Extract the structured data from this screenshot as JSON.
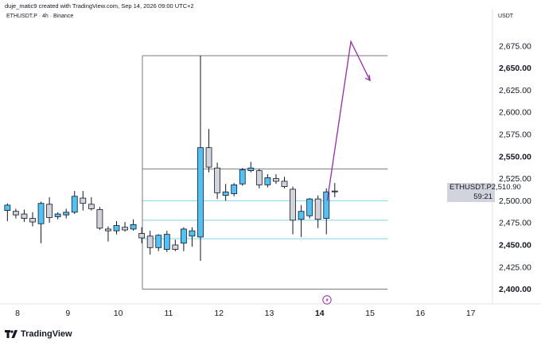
{
  "header": {
    "caption": "duje_matic9 created with TradingView.com, Sep 14, 2026 09:00 UTC+2"
  },
  "symbol_info": "ETHUSDT.P · 4h · Binance",
  "currency": "USDT",
  "price_tag": {
    "symbol": "ETHUSDT.P",
    "price": "2,510.90",
    "countdown": "59:21"
  },
  "footer": {
    "brand": "TradingView"
  },
  "colors": {
    "up": "#4fc3f7",
    "down": "#d1d4dc",
    "wick": "#131722",
    "projection": "#9c27b0",
    "gray_line": "#787b86",
    "cyan_line": "#7fd4e8"
  },
  "chart_data": {
    "type": "candlestick",
    "x_tick_labels": [
      "8",
      "9",
      "10",
      "11",
      "12",
      "13",
      "14",
      "15",
      "16",
      "17"
    ],
    "y_tick_labels": [
      "2,400.00",
      "2,425.00",
      "2,450.00",
      "2,475.00",
      "2,500.00",
      "2,525.00",
      "2,550.00",
      "2,575.00",
      "2,600.00",
      "2,625.00",
      "2,650.00",
      "2,675.00"
    ],
    "y_bold_ticks": [
      "2,650.00",
      "2,550.00",
      "2,450.00",
      "2,400.00"
    ],
    "ylim": [
      2387,
      2700
    ],
    "highlighted_x_label": "14",
    "candles": [
      {
        "o": 2489,
        "h": 2497,
        "l": 2477,
        "c": 2495
      },
      {
        "o": 2488,
        "h": 2491,
        "l": 2480,
        "c": 2484
      },
      {
        "o": 2485,
        "h": 2490,
        "l": 2476,
        "c": 2480
      },
      {
        "o": 2480,
        "h": 2487,
        "l": 2471,
        "c": 2476
      },
      {
        "o": 2474,
        "h": 2499,
        "l": 2452,
        "c": 2497
      },
      {
        "o": 2496,
        "h": 2504,
        "l": 2475,
        "c": 2481
      },
      {
        "o": 2482,
        "h": 2487,
        "l": 2479,
        "c": 2485
      },
      {
        "o": 2484,
        "h": 2491,
        "l": 2480,
        "c": 2487
      },
      {
        "o": 2487,
        "h": 2511,
        "l": 2485,
        "c": 2505
      },
      {
        "o": 2503,
        "h": 2511,
        "l": 2489,
        "c": 2497
      },
      {
        "o": 2496,
        "h": 2504,
        "l": 2489,
        "c": 2491
      },
      {
        "o": 2490,
        "h": 2493,
        "l": 2467,
        "c": 2469
      },
      {
        "o": 2468,
        "h": 2471,
        "l": 2454,
        "c": 2466
      },
      {
        "o": 2466,
        "h": 2477,
        "l": 2462,
        "c": 2472
      },
      {
        "o": 2470,
        "h": 2476,
        "l": 2465,
        "c": 2467
      },
      {
        "o": 2468,
        "h": 2479,
        "l": 2466,
        "c": 2473
      },
      {
        "o": 2463,
        "h": 2470,
        "l": 2452,
        "c": 2458
      },
      {
        "o": 2460,
        "h": 2466,
        "l": 2439,
        "c": 2447
      },
      {
        "o": 2447,
        "h": 2462,
        "l": 2443,
        "c": 2461
      },
      {
        "o": 2445,
        "h": 2466,
        "l": 2442,
        "c": 2462
      },
      {
        "o": 2450,
        "h": 2456,
        "l": 2443,
        "c": 2445
      },
      {
        "o": 2452,
        "h": 2470,
        "l": 2443,
        "c": 2468
      },
      {
        "o": 2460,
        "h": 2470,
        "l": 2448,
        "c": 2466
      },
      {
        "o": 2459,
        "h": 2664,
        "l": 2432,
        "c": 2560
      },
      {
        "o": 2560,
        "h": 2581,
        "l": 2532,
        "c": 2538
      },
      {
        "o": 2537,
        "h": 2543,
        "l": 2502,
        "c": 2509
      },
      {
        "o": 2506,
        "h": 2519,
        "l": 2500,
        "c": 2510
      },
      {
        "o": 2508,
        "h": 2520,
        "l": 2505,
        "c": 2518
      },
      {
        "o": 2519,
        "h": 2537,
        "l": 2517,
        "c": 2535
      },
      {
        "o": 2534,
        "h": 2544,
        "l": 2532,
        "c": 2537
      },
      {
        "o": 2534,
        "h": 2536,
        "l": 2514,
        "c": 2518
      },
      {
        "o": 2518,
        "h": 2530,
        "l": 2515,
        "c": 2526
      },
      {
        "o": 2525,
        "h": 2530,
        "l": 2519,
        "c": 2522
      },
      {
        "o": 2522,
        "h": 2527,
        "l": 2514,
        "c": 2516
      },
      {
        "o": 2513,
        "h": 2516,
        "l": 2462,
        "c": 2478
      },
      {
        "o": 2479,
        "h": 2495,
        "l": 2459,
        "c": 2488
      },
      {
        "o": 2483,
        "h": 2503,
        "l": 2480,
        "c": 2502
      },
      {
        "o": 2502,
        "h": 2506,
        "l": 2469,
        "c": 2479
      },
      {
        "o": 2480,
        "h": 2514,
        "l": 2462,
        "c": 2510
      },
      {
        "o": 2510,
        "h": 2520,
        "l": 2504,
        "c": 2511
      }
    ],
    "horizontal_levels": [
      {
        "price": 2664,
        "style": "gray"
      },
      {
        "price": 2536,
        "style": "gray"
      },
      {
        "price": 2500,
        "style": "cyan"
      },
      {
        "price": 2478,
        "style": "cyan"
      },
      {
        "price": 2457,
        "style": "cyan"
      },
      {
        "price": 2400,
        "style": "gray"
      }
    ],
    "projection_path": [
      {
        "t": 14.15,
        "p": 2500
      },
      {
        "t": 14.62,
        "p": 2680
      },
      {
        "t": 15.0,
        "p": 2636
      }
    ]
  }
}
